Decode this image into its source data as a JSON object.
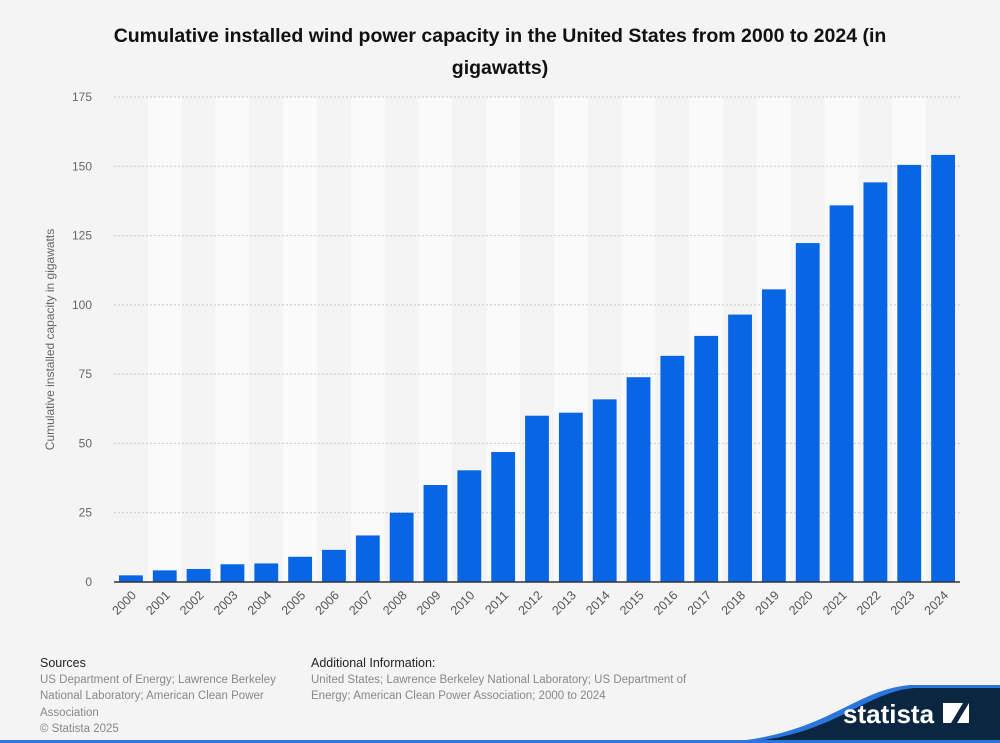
{
  "chart_data": {
    "type": "bar",
    "title": "Cumulative installed wind power capacity in the United States from 2000 to 2024 (in gigawatts)",
    "xlabel": "",
    "ylabel": "Cumulative installed capacity in gigawatts",
    "ylim": [
      0,
      175
    ],
    "yticks": [
      0,
      25,
      50,
      75,
      100,
      125,
      150,
      175
    ],
    "grid": true,
    "categories": [
      "2000",
      "2001",
      "2002",
      "2003",
      "2004",
      "2005",
      "2006",
      "2007",
      "2008",
      "2009",
      "2010",
      "2011",
      "2012",
      "2013",
      "2014",
      "2015",
      "2016",
      "2017",
      "2018",
      "2019",
      "2020",
      "2021",
      "2022",
      "2023",
      "2024"
    ],
    "values": [
      2.4,
      4.2,
      4.7,
      6.4,
      6.7,
      9.1,
      11.6,
      16.8,
      25.0,
      35.0,
      40.3,
      46.9,
      60.0,
      61.1,
      65.9,
      73.9,
      81.6,
      88.8,
      96.5,
      105.6,
      122.3,
      135.9,
      144.2,
      150.5,
      154.1
    ],
    "bar_color": "#0866e4"
  },
  "footer": {
    "sources_title": "Sources",
    "sources_text": "US Department of Energy; Lawrence Berkeley National Laboratory; American Clean Power Association",
    "copyright": "© Statista 2025",
    "additional_title": "Additional Information:",
    "additional_text": "United States; Lawrence Berkeley National Laboratory; US Department of Energy; American Clean Power Association; 2000 to 2024",
    "logo_text": "statista"
  }
}
